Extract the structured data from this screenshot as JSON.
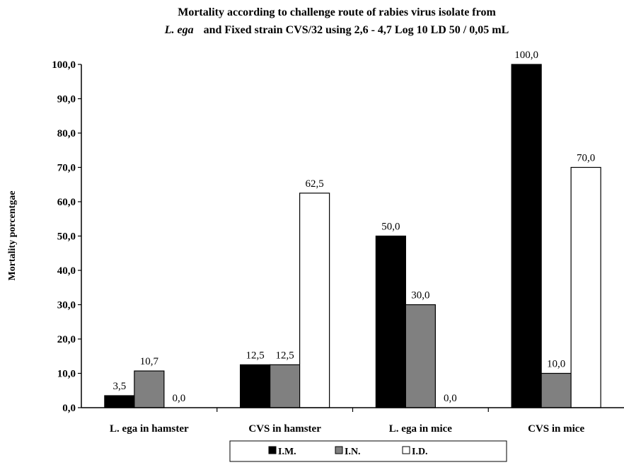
{
  "chart_data": {
    "type": "bar",
    "title_line1": "Mortality according to challenge route of rabies virus isolate from",
    "title_line2_italic": "L. ega",
    "title_line2_rest": "and Fixed strain CVS/32 using 2,6 - 4,7 Log 10 LD 50 / 0,05 mL",
    "ylabel": "Mortality porcentgae",
    "xlabel": "",
    "ylim": [
      0,
      100
    ],
    "yticks": [
      "0,0",
      "10,0",
      "20,0",
      "30,0",
      "40,0",
      "50,0",
      "60,0",
      "70,0",
      "80,0",
      "90,0",
      "100,0"
    ],
    "categories": [
      "L. ega in hamster",
      "CVS in hamster",
      "L. ega in mice",
      "CVS in mice"
    ],
    "series": [
      {
        "name": "I.M.",
        "color": "#000000",
        "values": [
          3.5,
          12.5,
          50.0,
          100.0
        ],
        "labels": [
          "3,5",
          "12,5",
          "50,0",
          "100,0"
        ]
      },
      {
        "name": "I.N.",
        "color": "#808080",
        "values": [
          10.7,
          12.5,
          30.0,
          10.0
        ],
        "labels": [
          "10,7",
          "12,5",
          "30,0",
          "10,0"
        ]
      },
      {
        "name": "I.D.",
        "color": "#ffffff",
        "values": [
          0.0,
          62.5,
          0.0,
          70.0
        ],
        "labels": [
          "0,0",
          "62,5",
          "0,0",
          "70,0"
        ]
      }
    ],
    "grid": false,
    "legend_position": "bottom"
  }
}
